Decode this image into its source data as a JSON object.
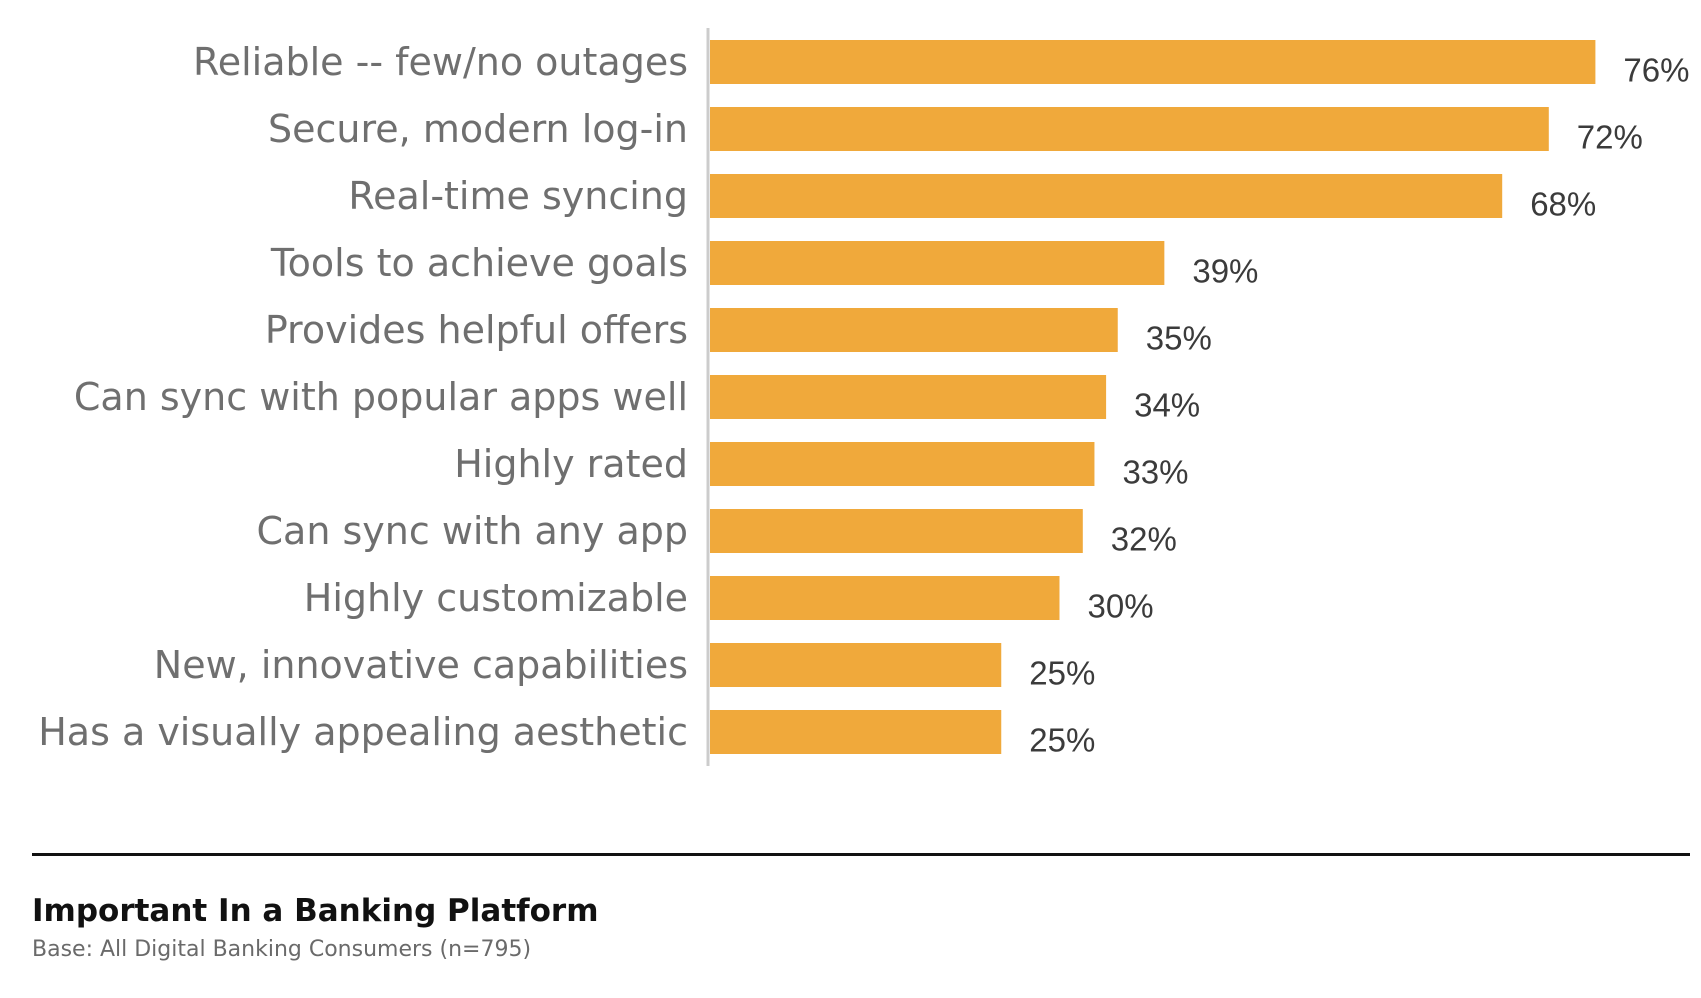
{
  "chart_data": {
    "type": "bar",
    "orientation": "horizontal",
    "categories": [
      "Reliable -- few/no outages",
      "Secure, modern log-in",
      "Real-time syncing",
      "Tools to achieve goals",
      "Provides helpful offers",
      "Can sync with popular apps well",
      "Highly rated",
      "Can sync with any app",
      "Highly customizable",
      "New, innovative capabilities",
      "Has a visually appealing aesthetic"
    ],
    "values": [
      76,
      72,
      68,
      39,
      35,
      34,
      33,
      32,
      30,
      25,
      25
    ],
    "data_labels": [
      "76%",
      "72%",
      "68%",
      "39%",
      "35%",
      "34%",
      "33%",
      "32%",
      "30%",
      "25%",
      "25%"
    ],
    "xlim": [
      0,
      100
    ],
    "grid": false,
    "legend": "none",
    "colors": {
      "bar": "#F0A93B",
      "axis": "#cccccc"
    }
  },
  "footer": {
    "title": "Important In a Banking Platform",
    "base": "Base: All Digital Banking Consumers (n=795)"
  }
}
